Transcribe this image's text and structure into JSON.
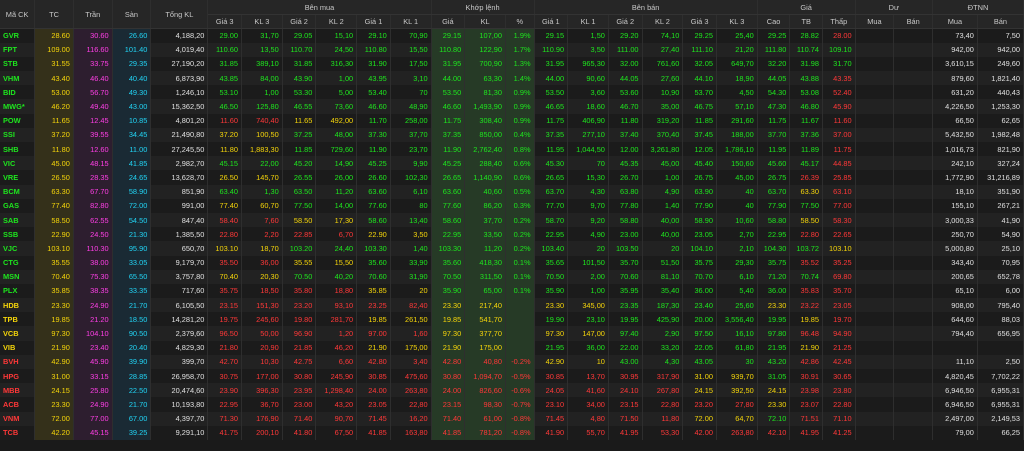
{
  "headers": {
    "symbol": "Mã CK",
    "ref": "TC",
    "ceiling": "Trần",
    "floor": "Sàn",
    "total_vol": "Tổng KL",
    "buy_group": "Bên mua",
    "match_group": "Khớp lệnh",
    "sell_group": "Bên bán",
    "price_group": "Giá",
    "remain_group": "Dư",
    "foreign_group": "ĐTNN",
    "price3": "Giá 3",
    "vol3": "KL 3",
    "price2": "Giá 2",
    "vol2": "KL 2",
    "price1": "Giá 1",
    "vol1": "KL 1",
    "match_price": "Giá",
    "match_vol": "KL",
    "match_pct": "%",
    "high": "Cao",
    "avg": "TB",
    "low": "Thấp",
    "remain_buy": "Mua",
    "remain_sell": "Bán",
    "foreign_buy": "Mua",
    "foreign_sell": "Bán"
  },
  "rows": [
    {
      "sym": "GVR",
      "ref": "28.60",
      "ceil": "30.60",
      "floor": "26.60",
      "tot": "4,188,20",
      "b3": "29.00",
      "bv3": "31,70",
      "b2": "29.05",
      "bv2": "15,10",
      "b1": "29.10",
      "bv1": "70,90",
      "m": "29.15",
      "mv": "107,00",
      "pct": "1.9%",
      "s1": "29.15",
      "sv1": "1,50",
      "s2": "29.20",
      "sv2": "74,10",
      "s3": "29.25",
      "sv3": "25,40",
      "hi": "29.25",
      "avg": "28.82",
      "lo": "28.00",
      "rb": "",
      "rs": "",
      "fb": "73,40",
      "fs": "7,50"
    },
    {
      "sym": "FPT",
      "ref": "109.00",
      "ceil": "116.60",
      "floor": "101.40",
      "tot": "4,019,40",
      "b3": "110.60",
      "bv3": "13,50",
      "b2": "110.70",
      "bv2": "24,50",
      "b1": "110.80",
      "bv1": "15,50",
      "m": "110.80",
      "mv": "122,90",
      "pct": "1.7%",
      "s1": "110.90",
      "sv1": "3,50",
      "s2": "111.00",
      "sv2": "27,40",
      "s3": "111.10",
      "sv3": "21,20",
      "hi": "111.80",
      "avg": "110.74",
      "lo": "109.10",
      "rb": "",
      "rs": "",
      "fb": "942,00",
      "fs": "942,00"
    },
    {
      "sym": "STB",
      "ref": "31.55",
      "ceil": "33.75",
      "floor": "29.35",
      "tot": "27,190,20",
      "b3": "31.85",
      "bv3": "389,10",
      "b2": "31.85",
      "bv2": "316,30",
      "b1": "31.90",
      "bv1": "17,50",
      "m": "31.95",
      "mv": "700,90",
      "pct": "1.3%",
      "s1": "31.95",
      "sv1": "965,30",
      "s2": "32.00",
      "sv2": "761,60",
      "s3": "32.05",
      "sv3": "649,70",
      "hi": "32.20",
      "avg": "31.98",
      "lo": "31.70",
      "rb": "",
      "rs": "",
      "fb": "3,610,15",
      "fs": "249,60"
    },
    {
      "sym": "VHM",
      "ref": "43.40",
      "ceil": "46.40",
      "floor": "40.40",
      "tot": "6,873,90",
      "b3": "43.85",
      "bv3": "84,00",
      "b2": "43.90",
      "bv2": "1,00",
      "b1": "43.95",
      "bv1": "3,10",
      "m": "44.00",
      "mv": "63,30",
      "pct": "1.4%",
      "s1": "44.00",
      "sv1": "90,60",
      "s2": "44.05",
      "sv2": "27,60",
      "s3": "44.10",
      "sv3": "18,90",
      "hi": "44.05",
      "avg": "43.88",
      "lo": "43.35",
      "rb": "",
      "rs": "",
      "fb": "879,60",
      "fs": "1,821,40"
    },
    {
      "sym": "BID",
      "ref": "53.00",
      "ceil": "56.70",
      "floor": "49.30",
      "tot": "1,246,10",
      "b3": "53.10",
      "bv3": "1,00",
      "b2": "53.30",
      "bv2": "5,00",
      "b1": "53.40",
      "bv1": "70",
      "m": "53.50",
      "mv": "81,30",
      "pct": "0.9%",
      "s1": "53.50",
      "sv1": "3,60",
      "s2": "53.60",
      "sv2": "10,90",
      "s3": "53.70",
      "sv3": "4,50",
      "hi": "54.30",
      "avg": "53.08",
      "lo": "52.40",
      "rb": "",
      "rs": "",
      "fb": "631,20",
      "fs": "440,43"
    },
    {
      "sym": "MWG*",
      "ref": "46.20",
      "ceil": "49.40",
      "floor": "43.00",
      "tot": "15,362,50",
      "b3": "46.50",
      "bv3": "125,80",
      "b2": "46.55",
      "bv2": "73,60",
      "b1": "46.60",
      "bv1": "48,90",
      "m": "46.60",
      "mv": "1,493,90",
      "pct": "0.9%",
      "s1": "46.65",
      "sv1": "18,60",
      "s2": "46.70",
      "sv2": "35,00",
      "s3": "46.75",
      "sv3": "57,10",
      "hi": "47.30",
      "avg": "46.80",
      "lo": "45.90",
      "rb": "",
      "rs": "",
      "fb": "4,226,50",
      "fs": "1,253,30"
    },
    {
      "sym": "POW",
      "ref": "11.65",
      "ceil": "12.45",
      "floor": "10.85",
      "tot": "4,801,20",
      "b3": "11.60",
      "bv3": "740,40",
      "b2": "11.65",
      "bv2": "492,00",
      "b1": "11.70",
      "bv1": "258,00",
      "m": "11.75",
      "mv": "308,40",
      "pct": "0.9%",
      "s1": "11.75",
      "sv1": "406,90",
      "s2": "11.80",
      "sv2": "319,20",
      "s3": "11.85",
      "sv3": "291,60",
      "hi": "11.75",
      "avg": "11.67",
      "lo": "11.60",
      "rb": "",
      "rs": "",
      "fb": "66,50",
      "fs": "62,65"
    },
    {
      "sym": "SSI",
      "ref": "37.20",
      "ceil": "39.55",
      "floor": "34.45",
      "tot": "21,490,80",
      "b3": "37.20",
      "bv3": "100,50",
      "b2": "37.25",
      "bv2": "48,00",
      "b1": "37.30",
      "bv1": "37,70",
      "m": "37.35",
      "mv": "850,00",
      "pct": "0.4%",
      "s1": "37.35",
      "sv1": "277,10",
      "s2": "37.40",
      "sv2": "370,40",
      "s3": "37.45",
      "sv3": "188,00",
      "hi": "37.70",
      "avg": "37.36",
      "lo": "37.00",
      "rb": "",
      "rs": "",
      "fb": "5,432,50",
      "fs": "1,982,48"
    },
    {
      "sym": "SHB",
      "ref": "11.80",
      "ceil": "12.60",
      "floor": "11.00",
      "tot": "27,245,50",
      "b3": "11.80",
      "bv3": "1,883,30",
      "b2": "11.85",
      "bv2": "729,60",
      "b1": "11.90",
      "bv1": "23,70",
      "m": "11.90",
      "mv": "2,762,40",
      "pct": "0.8%",
      "s1": "11.95",
      "sv1": "1,044,50",
      "s2": "12.00",
      "sv2": "3,261,80",
      "s3": "12.05",
      "sv3": "1,786,10",
      "hi": "11.95",
      "avg": "11.89",
      "lo": "11.75",
      "rb": "",
      "rs": "",
      "fb": "1,016,73",
      "fs": "821,90"
    },
    {
      "sym": "VIC",
      "ref": "45.00",
      "ceil": "48.15",
      "floor": "41.85",
      "tot": "2,982,70",
      "b3": "45.15",
      "bv3": "22,00",
      "b2": "45.20",
      "bv2": "14,90",
      "b1": "45.25",
      "bv1": "9,90",
      "m": "45.25",
      "mv": "288,40",
      "pct": "0.6%",
      "s1": "45.30",
      "sv1": "70",
      "s2": "45.35",
      "sv2": "45,00",
      "s3": "45.40",
      "sv3": "150,60",
      "hi": "45.60",
      "avg": "45.17",
      "lo": "44.85",
      "rb": "",
      "rs": "",
      "fb": "242,10",
      "fs": "327,24"
    },
    {
      "sym": "VRE",
      "ref": "26.50",
      "ceil": "28.35",
      "floor": "24.65",
      "tot": "13,628,70",
      "b3": "26.50",
      "bv3": "145,70",
      "b2": "26.55",
      "bv2": "26,00",
      "b1": "26.60",
      "bv1": "102,30",
      "m": "26.65",
      "mv": "1,140,90",
      "pct": "0.6%",
      "s1": "26.65",
      "sv1": "15,30",
      "s2": "26.70",
      "sv2": "1,00",
      "s3": "26.75",
      "sv3": "45,00",
      "hi": "26.75",
      "avg": "26.39",
      "lo": "25.85",
      "rb": "",
      "rs": "",
      "fb": "1,772,90",
      "fs": "31,216,89"
    },
    {
      "sym": "BCM",
      "ref": "63.30",
      "ceil": "67.70",
      "floor": "58.90",
      "tot": "851,90",
      "b3": "63.40",
      "bv3": "1,30",
      "b2": "63.50",
      "bv2": "11,20",
      "b1": "63.60",
      "bv1": "6,10",
      "m": "63.60",
      "mv": "40,60",
      "pct": "0.5%",
      "s1": "63.70",
      "sv1": "4,30",
      "s2": "63.80",
      "sv2": "4,90",
      "s3": "63.90",
      "sv3": "40",
      "hi": "63.70",
      "avg": "63.30",
      "lo": "63.10",
      "rb": "",
      "rs": "",
      "fb": "18,10",
      "fs": "351,90"
    },
    {
      "sym": "GAS",
      "ref": "77.40",
      "ceil": "82.80",
      "floor": "72.00",
      "tot": "991,00",
      "b3": "77.40",
      "bv3": "60,70",
      "b2": "77.50",
      "bv2": "14,00",
      "b1": "77.60",
      "bv1": "80",
      "m": "77.60",
      "mv": "86,20",
      "pct": "0.3%",
      "s1": "77.70",
      "sv1": "9,70",
      "s2": "77.80",
      "sv2": "1,40",
      "s3": "77.90",
      "sv3": "40",
      "hi": "77.90",
      "avg": "77.50",
      "lo": "77.00",
      "rb": "",
      "rs": "",
      "fb": "155,10",
      "fs": "267,21"
    },
    {
      "sym": "SAB",
      "ref": "58.50",
      "ceil": "62.55",
      "floor": "54.50",
      "tot": "847,40",
      "b3": "58.40",
      "bv3": "7,60",
      "b2": "58.50",
      "bv2": "17,30",
      "b1": "58.60",
      "bv1": "13,40",
      "m": "58.60",
      "mv": "37,70",
      "pct": "0.2%",
      "s1": "58.70",
      "sv1": "9,20",
      "s2": "58.80",
      "sv2": "40,00",
      "s3": "58.90",
      "sv3": "10,60",
      "hi": "58.80",
      "avg": "58.50",
      "lo": "58.30",
      "rb": "",
      "rs": "",
      "fb": "3,000,33",
      "fs": "41,90"
    },
    {
      "sym": "SSB",
      "ref": "22.90",
      "ceil": "24.50",
      "floor": "21.30",
      "tot": "1,385,50",
      "b3": "22.80",
      "bv3": "2,20",
      "b2": "22.85",
      "bv2": "6,70",
      "b1": "22.90",
      "bv1": "3,50",
      "m": "22.95",
      "mv": "33,50",
      "pct": "0.2%",
      "s1": "22.95",
      "sv1": "4,90",
      "s2": "23.00",
      "sv2": "40,00",
      "s3": "23.05",
      "sv3": "2,70",
      "hi": "22.95",
      "avg": "22.80",
      "lo": "22.65",
      "rb": "",
      "rs": "",
      "fb": "250,70",
      "fs": "54,90"
    },
    {
      "sym": "VJC",
      "ref": "103.10",
      "ceil": "110.30",
      "floor": "95.90",
      "tot": "650,70",
      "b3": "103.10",
      "bv3": "18,70",
      "b2": "103.20",
      "bv2": "24,40",
      "b1": "103.30",
      "bv1": "1,40",
      "m": "103.30",
      "mv": "11,20",
      "pct": "0.2%",
      "s1": "103.40",
      "sv1": "20",
      "s2": "103.50",
      "sv2": "20",
      "s3": "104.10",
      "sv3": "2,10",
      "hi": "104.30",
      "avg": "103.72",
      "lo": "103.10",
      "rb": "",
      "rs": "",
      "fb": "5,000,80",
      "fs": "25,10"
    },
    {
      "sym": "CTG",
      "ref": "35.55",
      "ceil": "38.00",
      "floor": "33.05",
      "tot": "9,179,70",
      "b3": "35.50",
      "bv3": "36,00",
      "b2": "35.55",
      "bv2": "15,50",
      "b1": "35.60",
      "bv1": "33,90",
      "m": "35.60",
      "mv": "418,30",
      "pct": "0.1%",
      "s1": "35.65",
      "sv1": "101,50",
      "s2": "35.70",
      "sv2": "51,50",
      "s3": "35.75",
      "sv3": "29,30",
      "hi": "35.75",
      "avg": "35.52",
      "lo": "35.25",
      "rb": "",
      "rs": "",
      "fb": "343,40",
      "fs": "70,95"
    },
    {
      "sym": "MSN",
      "ref": "70.40",
      "ceil": "75.30",
      "floor": "65.50",
      "tot": "3,757,80",
      "b3": "70.40",
      "bv3": "20,30",
      "b2": "70.50",
      "bv2": "40,20",
      "b1": "70.60",
      "bv1": "31,90",
      "m": "70.50",
      "mv": "311,50",
      "pct": "0.1%",
      "s1": "70.50",
      "sv1": "2,00",
      "s2": "70.60",
      "sv2": "81,10",
      "s3": "70.70",
      "sv3": "6,10",
      "hi": "71.20",
      "avg": "70.74",
      "lo": "69.80",
      "rb": "",
      "rs": "",
      "fb": "200,65",
      "fs": "652,78"
    },
    {
      "sym": "PLX",
      "ref": "35.85",
      "ceil": "38.35",
      "floor": "33.35",
      "tot": "717,60",
      "b3": "35.75",
      "bv3": "18,50",
      "b2": "35.80",
      "bv2": "18,80",
      "b1": "35.85",
      "bv1": "20",
      "m": "35.90",
      "mv": "65,00",
      "pct": "0.1%",
      "s1": "35.90",
      "sv1": "1,00",
      "s2": "35.95",
      "sv2": "35,40",
      "s3": "36.00",
      "sv3": "5,40",
      "hi": "36.00",
      "avg": "35.83",
      "lo": "35.70",
      "rb": "",
      "rs": "",
      "fb": "65,10",
      "fs": "6,00"
    },
    {
      "sym": "HDB",
      "ref": "23.30",
      "ceil": "24.90",
      "floor": "21.70",
      "tot": "6,105,50",
      "b3": "23.15",
      "bv3": "151,30",
      "b2": "23.20",
      "bv2": "93,10",
      "b1": "23.25",
      "bv1": "82,40",
      "m": "23.30",
      "mv": "217,40",
      "pct": "",
      "s1": "23.30",
      "sv1": "345,00",
      "s2": "23.35",
      "sv2": "187,30",
      "s3": "23.40",
      "sv3": "25,60",
      "hi": "23.30",
      "avg": "23.22",
      "lo": "23.05",
      "rb": "",
      "rs": "",
      "fb": "908,00",
      "fs": "795,40"
    },
    {
      "sym": "TPB",
      "ref": "19.85",
      "ceil": "21.20",
      "floor": "18.50",
      "tot": "14,281,20",
      "b3": "19.75",
      "bv3": "245,60",
      "b2": "19.80",
      "bv2": "281,70",
      "b1": "19.85",
      "bv1": "261,50",
      "m": "19.85",
      "mv": "541,70",
      "pct": "",
      "s1": "19.90",
      "sv1": "23,10",
      "s2": "19.95",
      "sv2": "425,90",
      "s3": "20.00",
      "sv3": "3,556,40",
      "hi": "19.95",
      "avg": "19.85",
      "lo": "19.70",
      "rb": "",
      "rs": "",
      "fb": "644,60",
      "fs": "88,03"
    },
    {
      "sym": "VCB",
      "ref": "97.30",
      "ceil": "104.10",
      "floor": "90.50",
      "tot": "2,379,60",
      "b3": "96.50",
      "bv3": "50,00",
      "b2": "96.90",
      "bv2": "1,20",
      "b1": "97.00",
      "bv1": "1,60",
      "m": "97.30",
      "mv": "377,70",
      "pct": "",
      "s1": "97.30",
      "sv1": "147,00",
      "s2": "97.40",
      "sv2": "2,90",
      "s3": "97.50",
      "sv3": "16,10",
      "hi": "97.80",
      "avg": "96.48",
      "lo": "94.90",
      "rb": "",
      "rs": "",
      "fb": "794,40",
      "fs": "656,95"
    },
    {
      "sym": "VIB",
      "ref": "21.90",
      "ceil": "23.40",
      "floor": "20.40",
      "tot": "4,829,30",
      "b3": "21.80",
      "bv3": "20,90",
      "b2": "21.85",
      "bv2": "46,20",
      "b1": "21.90",
      "bv1": "175,00",
      "m": "21.90",
      "mv": "175,00",
      "pct": "",
      "s1": "21.95",
      "sv1": "36,00",
      "s2": "22.00",
      "sv2": "33,20",
      "s3": "22.05",
      "sv3": "61,80",
      "hi": "21.95",
      "avg": "21.90",
      "lo": "21.25",
      "rb": "",
      "rs": "",
      "fb": "",
      "fs": ""
    },
    {
      "sym": "BVH",
      "ref": "42.90",
      "ceil": "45.90",
      "floor": "39.90",
      "tot": "399,70",
      "b3": "42.70",
      "bv3": "10,30",
      "b2": "42.75",
      "bv2": "6,60",
      "b1": "42.80",
      "bv1": "3,40",
      "m": "42.80",
      "mv": "40,80",
      "pct": "-0.2%",
      "s1": "42.90",
      "sv1": "10",
      "s2": "43.00",
      "sv2": "4,30",
      "s3": "43.05",
      "sv3": "30",
      "hi": "43.20",
      "avg": "42.86",
      "lo": "42.45",
      "rb": "",
      "rs": "",
      "fb": "11,10",
      "fs": "2,50"
    },
    {
      "sym": "HPG",
      "ref": "31.00",
      "ceil": "33.15",
      "floor": "28.85",
      "tot": "26,958,70",
      "b3": "30.75",
      "bv3": "177,00",
      "b2": "30.80",
      "bv2": "245,90",
      "b1": "30.85",
      "bv1": "475,60",
      "m": "30.80",
      "mv": "1,094,70",
      "pct": "-0.5%",
      "s1": "30.85",
      "sv1": "13,70",
      "s2": "30.95",
      "sv2": "317,90",
      "s3": "31.00",
      "sv3": "939,70",
      "hi": "31.05",
      "avg": "30.91",
      "lo": "30.65",
      "rb": "",
      "rs": "",
      "fb": "4,820,45",
      "fs": "7,702,22"
    },
    {
      "sym": "MBB",
      "ref": "24.15",
      "ceil": "25.80",
      "floor": "22.50",
      "tot": "20,474,60",
      "b3": "23.90",
      "bv3": "396,30",
      "b2": "23.95",
      "bv2": "1,298,40",
      "b1": "24.00",
      "bv1": "263,80",
      "m": "24.00",
      "mv": "826,60",
      "pct": "-0.6%",
      "s1": "24.05",
      "sv1": "41,60",
      "s2": "24.10",
      "sv2": "267,80",
      "s3": "24.15",
      "sv3": "392,50",
      "hi": "24.15",
      "avg": "23.98",
      "lo": "23.80",
      "rb": "",
      "rs": "",
      "fb": "6,946,50",
      "fs": "6,955,31"
    },
    {
      "sym": "ACB",
      "ref": "23.30",
      "ceil": "24.90",
      "floor": "21.70",
      "tot": "10,193,80",
      "b3": "22.95",
      "bv3": "36,70",
      "b2": "23.00",
      "bv2": "43,20",
      "b1": "23.05",
      "bv1": "22,80",
      "m": "23.15",
      "mv": "98,30",
      "pct": "-0.7%",
      "s1": "23.10",
      "sv1": "34,00",
      "s2": "23.15",
      "sv2": "22,80",
      "s3": "23.20",
      "sv3": "27,80",
      "hi": "23.30",
      "avg": "23.07",
      "lo": "22.80",
      "rb": "",
      "rs": "",
      "fb": "6,946,50",
      "fs": "6,955,31"
    },
    {
      "sym": "VNM",
      "ref": "72.00",
      "ceil": "77.00",
      "floor": "67.00",
      "tot": "4,397,70",
      "b3": "71.30",
      "bv3": "176,90",
      "b2": "71.40",
      "bv2": "90,70",
      "b1": "71.45",
      "bv1": "16,20",
      "m": "71.40",
      "mv": "61,00",
      "pct": "-0.8%",
      "s1": "71.45",
      "sv1": "4,80",
      "s2": "71.50",
      "sv2": "11,80",
      "s3": "72.00",
      "sv3": "64,70",
      "hi": "72.10",
      "avg": "71.51",
      "lo": "71.10",
      "rb": "",
      "rs": "",
      "fb": "2,497,00",
      "fs": "2,149,53"
    },
    {
      "sym": "TCB",
      "ref": "42.20",
      "ceil": "45.15",
      "floor": "39.25",
      "tot": "9,291,10",
      "b3": "41.75",
      "bv3": "200,10",
      "b2": "41.80",
      "bv2": "67,50",
      "b1": "41.85",
      "bv1": "163,80",
      "m": "41.85",
      "mv": "781,20",
      "pct": "-0.8%",
      "s1": "41.90",
      "sv1": "55,70",
      "s2": "41.95",
      "sv2": "53,30",
      "s3": "42.00",
      "sv3": "263,80",
      "hi": "42.10",
      "avg": "41.95",
      "lo": "41.25",
      "rb": "",
      "rs": "",
      "fb": "79,00",
      "fs": "66,25"
    }
  ],
  "colors": {
    "up": "#1ee61e",
    "down": "#ff3838",
    "ref": "#f5d50a",
    "ceiling": "#ff3ee6",
    "floor": "#21d4f5"
  }
}
